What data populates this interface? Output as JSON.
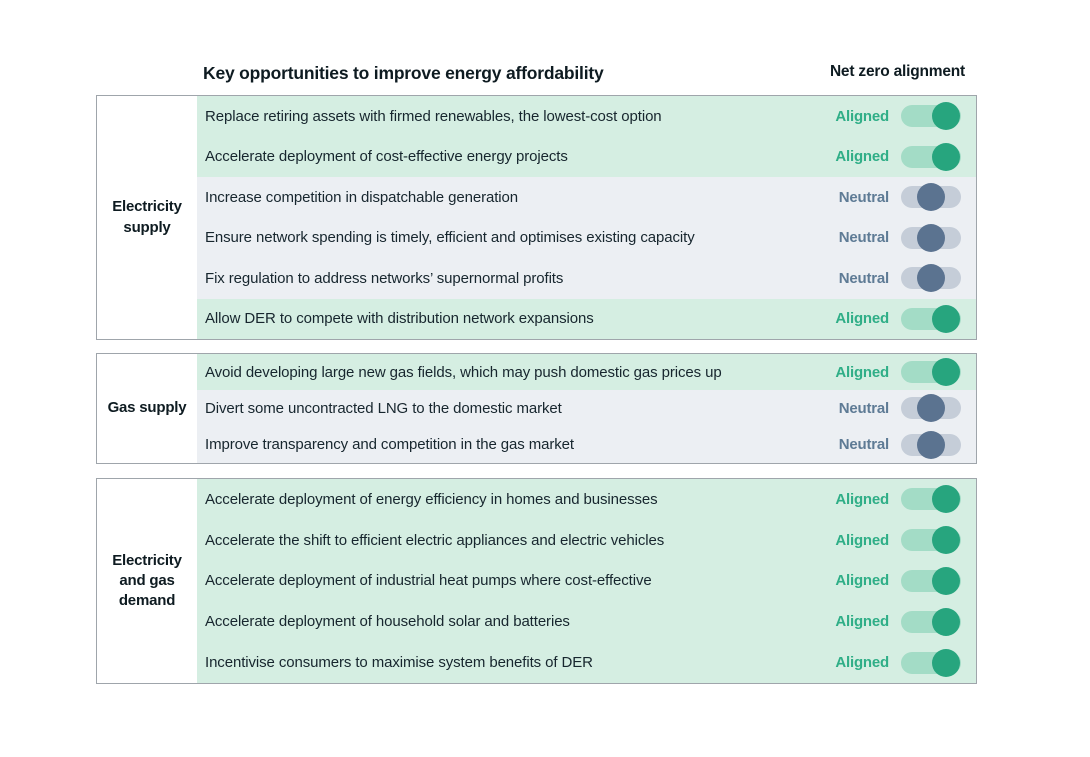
{
  "header": {
    "opportunities_title": "Key opportunities to improve energy affordability",
    "alignment_title": "Net zero alignment"
  },
  "statuses": {
    "aligned": "Aligned",
    "neutral": "Neutral"
  },
  "colors": {
    "aligned_row_bg": "#d5eee2",
    "aligned_track": "#a3dcc6",
    "aligned_knob": "#27a57e",
    "aligned_text": "#2fae87",
    "neutral_row_bg": "#eceff3",
    "neutral_track": "#c5cdd8",
    "neutral_knob": "#5b7390",
    "neutral_text": "#5e7b95",
    "row_text": "#17262e",
    "section_border": "#9fa5ab"
  },
  "chart_data": {
    "type": "table",
    "title": "Key opportunities to improve energy affordability",
    "value_column": "Net zero alignment",
    "legend_position": "none",
    "sections": [
      {
        "label": "Electricity supply",
        "rows": [
          {
            "text": "Replace retiring assets with firmed renewables, the lowest-cost option",
            "status": "aligned"
          },
          {
            "text": "Accelerate deployment of cost-effective energy projects",
            "status": "aligned"
          },
          {
            "text": "Increase competition in dispatchable generation",
            "status": "neutral"
          },
          {
            "text": "Ensure network spending is timely, efficient and optimises existing capacity",
            "status": "neutral"
          },
          {
            "text": "Fix regulation to address networks’ supernormal profits",
            "status": "neutral"
          },
          {
            "text": "Allow DER to compete with distribution network expansions",
            "status": "aligned"
          }
        ]
      },
      {
        "label": "Gas supply",
        "rows": [
          {
            "text": "Avoid developing large new gas fields, which may push domestic gas prices up",
            "status": "aligned"
          },
          {
            "text": "Divert some uncontracted LNG to the domestic market",
            "status": "neutral"
          },
          {
            "text": "Improve transparency and competition in the gas market",
            "status": "neutral"
          }
        ]
      },
      {
        "label": "Electricity and gas demand",
        "rows": [
          {
            "text": "Accelerate deployment of energy efficiency in homes and businesses",
            "status": "aligned"
          },
          {
            "text": "Accelerate the shift to efficient electric appliances and electric vehicles",
            "status": "aligned"
          },
          {
            "text": "Accelerate deployment of industrial heat pumps where cost-effective",
            "status": "aligned"
          },
          {
            "text": "Accelerate deployment of household solar and batteries",
            "status": "aligned"
          },
          {
            "text": "Incentivise consumers to maximise system benefits of DER",
            "status": "aligned"
          }
        ]
      }
    ]
  }
}
